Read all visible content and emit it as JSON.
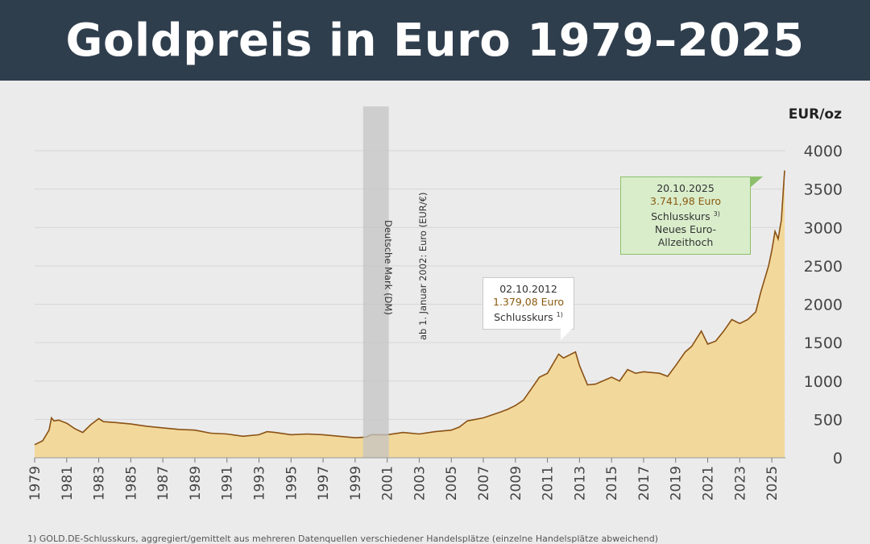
{
  "title": "Goldpreis in Euro 1979–2025",
  "footnote": "1) GOLD.DE-Schlusskurs, aggregiert/gemittelt aus mehreren Datenquellen verschiedener Handelsplätze (einzelne Handelsplätze abweichend)",
  "colors": {
    "header_bg": "#2f3e4d",
    "area_fill": "#f2d89b",
    "line": "#8a5114",
    "band": "#c4c4c4",
    "callout_green_bg": "#d9edcb",
    "callout_green_border": "#8cc06a"
  },
  "annotations": {
    "dm": "Deutsche Mark (DM)",
    "euro": "ab 1. Januar 2002: Euro (EUR/€)",
    "peak2012": {
      "date": "02.10.2012",
      "value": "1.379,08 Euro",
      "label": "Schlusskurs",
      "note": "1)"
    },
    "peak2025": {
      "date": "20.10.2025",
      "value": "3.741,98 Euro",
      "label": "Schlusskurs",
      "note": "3)",
      "extra": "Neues Euro-Allzeithoch"
    }
  },
  "chart_data": {
    "type": "area",
    "ylabel": "EUR/oz",
    "ylim": [
      0,
      4000
    ],
    "xlim": [
      1979,
      2025.85
    ],
    "yticks": [
      "0",
      "500",
      "1000",
      "1500",
      "2000",
      "2500",
      "3000",
      "3500",
      "4000"
    ],
    "xticks": [
      "1979",
      "1981",
      "1983",
      "1985",
      "1987",
      "1989",
      "1991",
      "1993",
      "1995",
      "1997",
      "1999",
      "2001",
      "2003",
      "2005",
      "2007",
      "2009",
      "2011",
      "2013",
      "2015",
      "2017",
      "2019",
      "2021",
      "2023",
      "2025"
    ],
    "grid": true,
    "currency_band": [
      1999.5,
      2001.1
    ],
    "series": [
      {
        "x": [
          1979,
          1979.5,
          1979.9,
          1980.05,
          1980.2,
          1980.5,
          1981,
          1981.5,
          1982,
          1982.5,
          1983,
          1983.3,
          1984,
          1985,
          1986,
          1987,
          1988,
          1989,
          1990,
          1991,
          1992,
          1993,
          1993.5,
          1994,
          1995,
          1996,
          1997,
          1998,
          1999,
          1999.7,
          2000,
          2001,
          2002,
          2003,
          2004,
          2005,
          2005.5,
          2006,
          2007,
          2008,
          2008.5,
          2009,
          2009.5,
          2010,
          2010.5,
          2011,
          2011.7,
          2012,
          2012.75,
          2013,
          2013.5,
          2014,
          2015,
          2015.5,
          2016,
          2016.5,
          2017,
          2018,
          2018.5,
          2019,
          2019.6,
          2020,
          2020.6,
          2021,
          2021.5,
          2022,
          2022.5,
          2023,
          2023.5,
          2024,
          2024.3,
          2024.8,
          2025,
          2025.2,
          2025.4,
          2025.6,
          2025.8
        ],
        "y": [
          170,
          220,
          360,
          520,
          480,
          490,
          450,
          380,
          330,
          430,
          510,
          470,
          460,
          440,
          410,
          390,
          370,
          360,
          320,
          310,
          280,
          300,
          340,
          330,
          300,
          310,
          300,
          280,
          260,
          270,
          300,
          300,
          330,
          310,
          340,
          360,
          400,
          480,
          520,
          590,
          630,
          680,
          750,
          900,
          1050,
          1100,
          1350,
          1300,
          1379,
          1200,
          950,
          960,
          1050,
          1000,
          1150,
          1100,
          1120,
          1100,
          1060,
          1200,
          1380,
          1450,
          1650,
          1480,
          1520,
          1650,
          1800,
          1750,
          1800,
          1900,
          2150,
          2500,
          2700,
          2950,
          2850,
          3100,
          3742
        ]
      }
    ]
  }
}
